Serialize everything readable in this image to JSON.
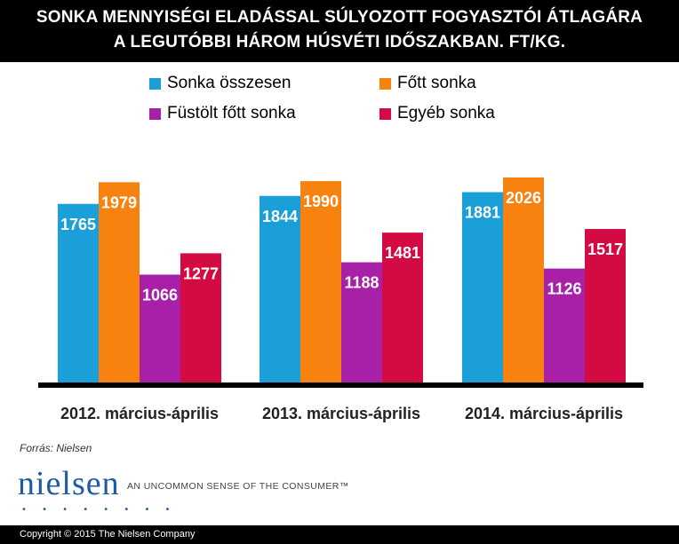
{
  "chart_data": {
    "type": "bar",
    "title_lines": [
      "SONKA MENNYISÉGI ELADÁSSAL SÚLYOZOTT FOGYASZTÓI ÁTLAGÁRA",
      "A LEGUTÓBBI HÁROM HÚSVÉTI IDŐSZAKBAN. FT/KG."
    ],
    "categories": [
      "2012. március-április",
      "2013. március-április",
      "2014. március-április"
    ],
    "series": [
      {
        "name": "Sonka összesen",
        "color": "#1a9fd8",
        "values": [
          1765,
          1844,
          1881
        ]
      },
      {
        "name": "Főtt sonka",
        "color": "#f7820f",
        "values": [
          1979,
          1990,
          2026
        ]
      },
      {
        "name": "Füstölt főtt sonka",
        "color": "#a81fa8",
        "values": [
          1066,
          1188,
          1126
        ]
      },
      {
        "name": "Egyéb sonka",
        "color": "#d40a43",
        "values": [
          1277,
          1481,
          1517
        ]
      }
    ],
    "ylim": [
      0,
      2026
    ],
    "legend_position": "top",
    "grid": false
  },
  "source_text": "Forrás: Nielsen",
  "logo_text": "nielsen",
  "logo_dots": "• • • • • • • •",
  "tagline": "AN UNCOMMON SENSE OF THE CONSUMER™",
  "copyright": "Copyright © 2015 The Nielsen Company"
}
